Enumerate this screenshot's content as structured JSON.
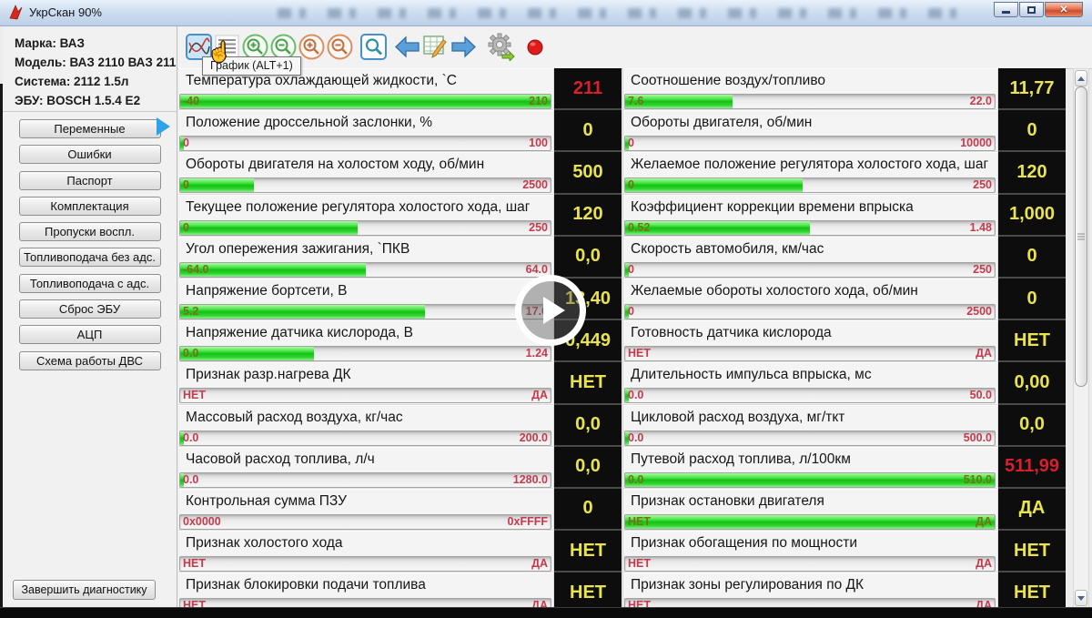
{
  "window": {
    "title": "УкрСкан 90%"
  },
  "window_controls": {
    "minimize": "minimize",
    "maximize": "maximize",
    "close_glyph": "✕"
  },
  "sidebar": {
    "info_lines": [
      "Марка: ВАЗ",
      "Модель: ВАЗ 2110 ВАЗ 211",
      "Система: 2112 1.5л",
      "ЭБУ: BOSCH 1.5.4 E2"
    ],
    "nav_buttons": [
      "Переменные",
      "Ошибки",
      "Паспорт",
      "Комплектация",
      "Пропуски воспл.",
      "Топливоподача без адс.",
      "Топливоподача с адс.",
      "Сброс ЭБУ",
      "АЦП",
      "Схема работы ДВС"
    ],
    "active_button_index": 0,
    "finish_button": "Завершить диагностику"
  },
  "toolbar": {
    "tooltip": "График (ALT+1)",
    "icons": [
      "graph-icon",
      "list-icon",
      "zoom-in-green-icon",
      "zoom-out-green-icon",
      "zoom-in-orange-icon",
      "zoom-out-orange-icon",
      "search-icon",
      "back-arrow-icon",
      "table-edit-icon",
      "forward-arrow-icon",
      "settings-gear-icon",
      "record-icon"
    ]
  },
  "params": {
    "left": [
      {
        "name": "Температура охлаждающей жидкости, `C",
        "min": "-40",
        "max": "210",
        "fill": 100,
        "value": "211",
        "alarm": true
      },
      {
        "name": "Положение дроссельной заслонки, %",
        "min": "0",
        "max": "100",
        "fill": 1,
        "value": "0",
        "alarm": false
      },
      {
        "name": "Обороты двигателя на холостом ходу, об/мин",
        "min": "0",
        "max": "2500",
        "fill": 20,
        "value": "500",
        "alarm": false
      },
      {
        "name": "Текущее положение регулятора холостого хода, шаг",
        "min": "0",
        "max": "250",
        "fill": 48,
        "value": "120",
        "alarm": false
      },
      {
        "name": "Угол опережения зажигания, `ПКВ",
        "min": "-64.0",
        "max": "64.0",
        "fill": 50,
        "value": "0,0",
        "alarm": false
      },
      {
        "name": "Напряжение бортсети, В",
        "min": "5.2",
        "max": "17.6",
        "fill": 66,
        "value": "13,40",
        "alarm": false
      },
      {
        "name": "Напряжение датчика кислорода, В",
        "min": "0.0",
        "max": "1.24",
        "fill": 36,
        "value": "0,449",
        "alarm": false
      },
      {
        "name": "Признак разр.нагрева ДК",
        "min": "НЕТ",
        "max": "ДА",
        "fill": 0,
        "value": "НЕТ",
        "alarm": false
      },
      {
        "name": "Массовый расход воздуха, кг/час",
        "min": "0.0",
        "max": "200.0",
        "fill": 1,
        "value": "0,0",
        "alarm": false
      },
      {
        "name": "Часовой расход топлива, л/ч",
        "min": "0.0",
        "max": "1280.0",
        "fill": 1,
        "value": "0,0",
        "alarm": false
      },
      {
        "name": "Контрольная сумма ПЗУ",
        "min": "0x0000",
        "max": "0xFFFF",
        "fill": 0,
        "value": "0",
        "alarm": false
      },
      {
        "name": "Признак холостого хода",
        "min": "НЕТ",
        "max": "ДА",
        "fill": 0,
        "value": "НЕТ",
        "alarm": false
      },
      {
        "name": "Признак блокировки подачи топлива",
        "min": "НЕТ",
        "max": "ДА",
        "fill": 0,
        "value": "НЕТ",
        "alarm": false
      }
    ],
    "right": [
      {
        "name": "Соотношение воздух/топливо",
        "min": "7.6",
        "max": "22.0",
        "fill": 29,
        "value": "11,77",
        "alarm": false
      },
      {
        "name": "Обороты двигателя, об/мин",
        "min": "0",
        "max": "10000",
        "fill": 1,
        "value": "0",
        "alarm": false
      },
      {
        "name": "Желаемое положение регулятора холостого хода, шаг",
        "min": "0",
        "max": "250",
        "fill": 48,
        "value": "120",
        "alarm": false
      },
      {
        "name": "Коэффициент коррекции времени впрыска",
        "min": "0.52",
        "max": "1.48",
        "fill": 50,
        "value": "1,000",
        "alarm": false
      },
      {
        "name": "Скорость автомобиля, км/час",
        "min": "0",
        "max": "250",
        "fill": 1,
        "value": "0",
        "alarm": false
      },
      {
        "name": "Желаемые обороты холостого хода, об/мин",
        "min": "0",
        "max": "2500",
        "fill": 1,
        "value": "0",
        "alarm": false
      },
      {
        "name": "Готовность датчика кислорода",
        "min": "НЕТ",
        "max": "ДА",
        "fill": 0,
        "value": "НЕТ",
        "alarm": false
      },
      {
        "name": "Длительность импульса впрыска, мс",
        "min": "0.0",
        "max": "50.0",
        "fill": 1,
        "value": "0,00",
        "alarm": false
      },
      {
        "name": "Цикловой расход воздуха, мг/ткт",
        "min": "0.0",
        "max": "500.0",
        "fill": 1,
        "value": "0,0",
        "alarm": false
      },
      {
        "name": "Путевой расход топлива, л/100км",
        "min": "0.0",
        "max": "510.0",
        "fill": 100,
        "value": "511,99",
        "alarm": true
      },
      {
        "name": "Признак остановки двигателя",
        "min": "НЕТ",
        "max": "ДА",
        "fill": 100,
        "value": "ДА",
        "alarm": false
      },
      {
        "name": "Признак обогащения по мощности",
        "min": "НЕТ",
        "max": "ДА",
        "fill": 0,
        "value": "НЕТ",
        "alarm": false
      },
      {
        "name": "Признак зоны регулирования по ДК",
        "min": "НЕТ",
        "max": "ДА",
        "fill": 0,
        "value": "НЕТ",
        "alarm": false
      }
    ]
  },
  "colors": {
    "bar_green": "#2ed42e",
    "value_yellow": "#e9e34f",
    "alarm_red": "#d6202e",
    "label_crimson": "#c23b4e",
    "label_olive": "#7d6e16"
  }
}
